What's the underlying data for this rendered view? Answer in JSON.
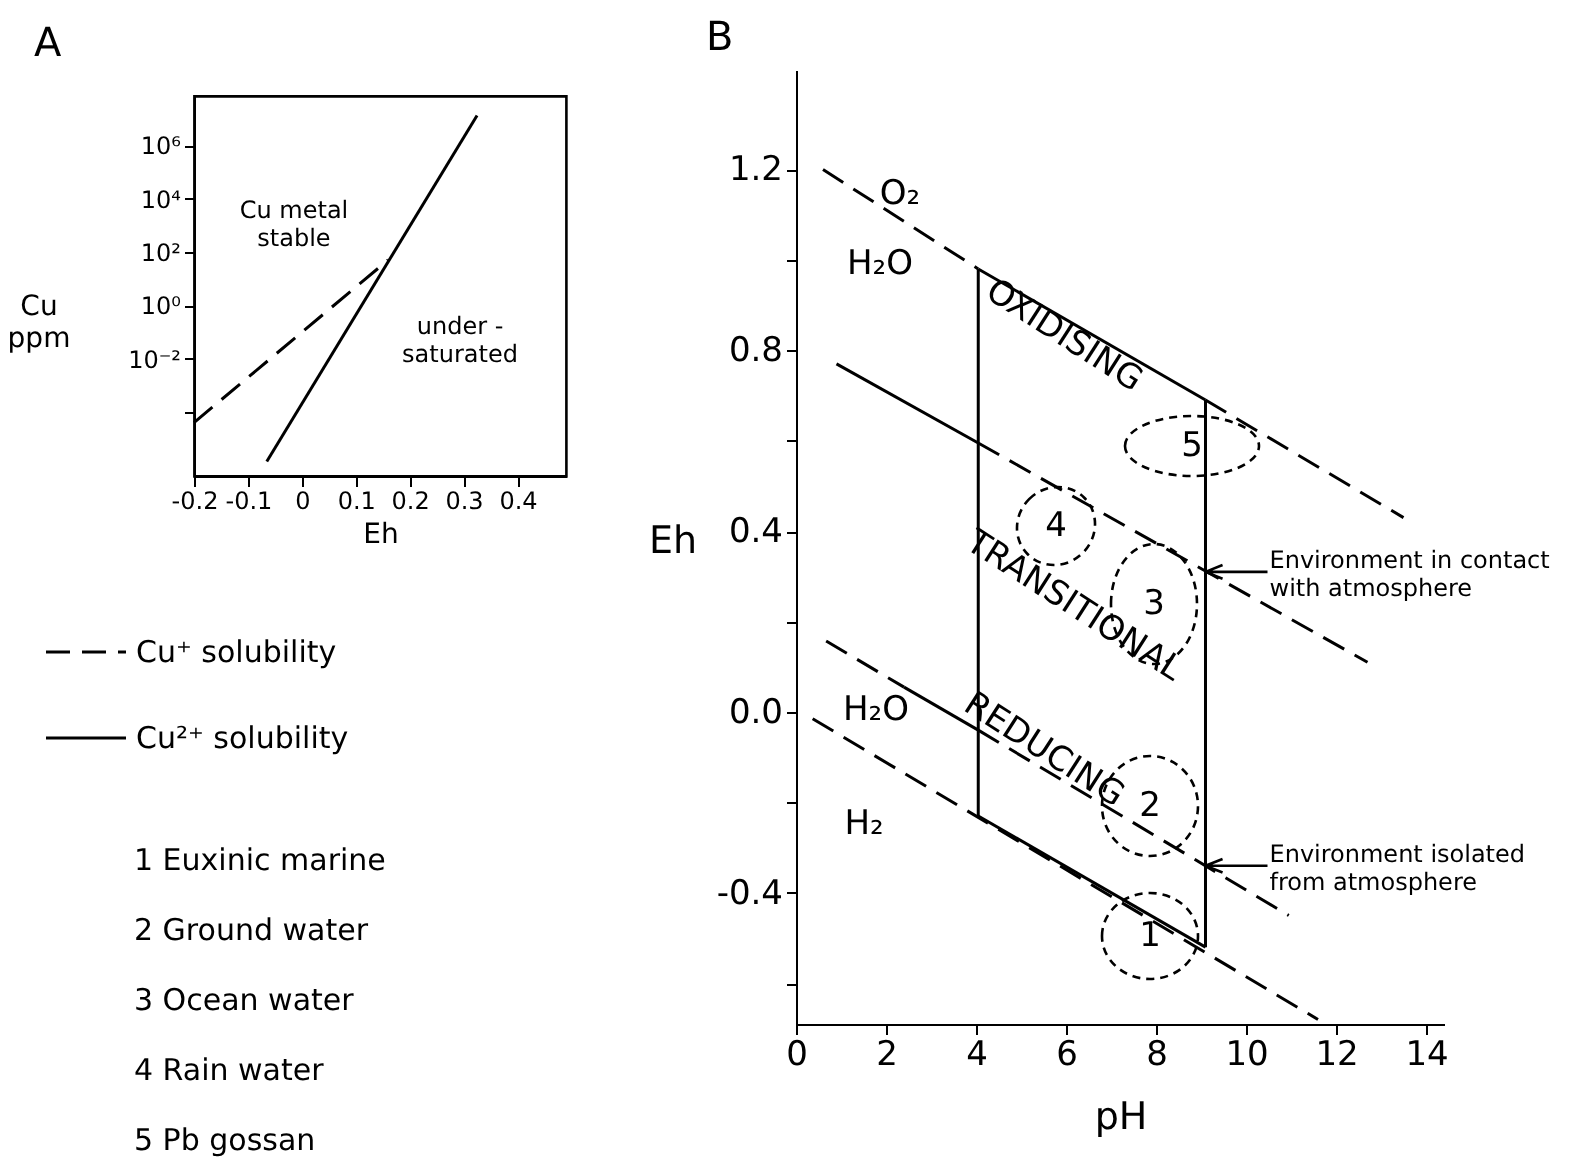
{
  "chart_data": [
    {
      "type": "line",
      "title": "A",
      "xlabel": "Eh",
      "ylabel": "Cu\nppm",
      "log": "y",
      "legend": "bottom left",
      "xlim": [
        -0.2,
        0.49
      ],
      "ylim": [
        4e-07,
        70000000
      ],
      "xticks": [
        -0.2,
        -0.1,
        0,
        0.1,
        0.2,
        0.3,
        0.4
      ],
      "yticks": [
        {
          "value": 0.0001,
          "label": null
        },
        {
          "value": 0.01,
          "label": "10⁻²"
        },
        {
          "value": 1,
          "label": "10⁰"
        },
        {
          "value": 100,
          "label": "10²"
        },
        {
          "value": 10000,
          "label": "10⁴"
        },
        {
          "value": 1000000,
          "label": "10⁶"
        }
      ],
      "series": [
        {
          "name": "Cu⁺ solubility",
          "color": "#000000",
          "line_style": "dashed",
          "x": [
            -0.2,
            0.16
          ],
          "values": [
            4e-05,
            50
          ]
        },
        {
          "name": "Cu²⁺ solubility",
          "color": "#000000",
          "line_style": "solid",
          "x": [
            -0.065,
            0.325
          ],
          "values": [
            1.4e-06,
            13000000
          ]
        }
      ],
      "annotations": [
        "Cu metal\nstable",
        "under -\nsaturated",
        "1 Euxinic marine",
        "2 Ground water",
        "3 Ocean water",
        "4 Rain water",
        "5 Pb gossan"
      ]
    },
    {
      "type": "line",
      "title": "B",
      "xlabel": "pH",
      "ylabel": "Eh",
      "xlim": [
        0,
        14.4
      ],
      "ylim": [
        -0.69,
        1.42
      ],
      "xticks": [
        0,
        2,
        4,
        6,
        8,
        10,
        12,
        14
      ],
      "yticks": [
        {
          "value": -0.6,
          "label": null
        },
        -0.4,
        {
          "value": -0.2,
          "label": null
        },
        {
          "value": 0,
          "label": "0.0"
        },
        {
          "value": 0.2,
          "label": null
        },
        0.4,
        {
          "value": 0.6,
          "label": null
        },
        0.8,
        {
          "value": 1.0,
          "label": null
        },
        1.2
      ],
      "series": [
        {
          "color": "#000000",
          "line_style": "dashed",
          "x": [
            0.6,
            4.05
          ],
          "values": [
            1.2,
            0.98
          ]
        },
        {
          "color": "#000000",
          "line_style": "solid",
          "x": [
            4.05,
            9.1
          ],
          "values": [
            0.98,
            0.69
          ]
        },
        {
          "color": "#000000",
          "line_style": "dashed",
          "x": [
            9.1,
            13.5
          ],
          "values": [
            0.69,
            0.43
          ]
        },
        {
          "color": "#000000",
          "line_style": "solid",
          "x": [
            4.05,
            4.05
          ],
          "values": [
            0.98,
            -0.23
          ]
        },
        {
          "color": "#000000",
          "line_style": "solid",
          "x": [
            4.05,
            9.1
          ],
          "values": [
            -0.23,
            -0.52
          ]
        },
        {
          "color": "#000000",
          "line_style": "solid",
          "x": [
            9.1,
            9.1
          ],
          "values": [
            -0.52,
            0.69
          ]
        },
        {
          "color": "#000000",
          "line_style": "solid",
          "x": [
            0.9,
            4.05
          ],
          "values": [
            0.77,
            0.595
          ]
        },
        {
          "color": "#000000",
          "line_style": "dashed",
          "x": [
            4.05,
            12.7
          ],
          "values": [
            0.595,
            0.11
          ]
        },
        {
          "color": "#000000",
          "line_style": "dashed",
          "x": [
            0.67,
            2.4
          ],
          "values": [
            0.157,
            0.055
          ]
        },
        {
          "color": "#000000",
          "line_style": "solid",
          "x": [
            2.4,
            4.05
          ],
          "values": [
            0.055,
            -0.04
          ]
        },
        {
          "color": "#000000",
          "line_style": "dashed",
          "x": [
            4.05,
            10.95
          ],
          "values": [
            -0.04,
            -0.45
          ]
        },
        {
          "color": "#000000",
          "line_style": "dashed",
          "x": [
            0.37,
            11.6
          ],
          "values": [
            -0.015,
            -0.68
          ]
        }
      ],
      "annotations": [
        "O₂",
        "H₂O",
        "H₂O",
        "H₂",
        "OXIDISING",
        "TRANSITIONAL",
        "REDUCING",
        "1",
        "2",
        "3",
        "4",
        "5",
        {
          "text": "Environment in contact\nwith atmosphere",
          "x": 9.1,
          "y": 0.31
        },
        {
          "text": "Environment isolated\nfrom atmosphere",
          "x": 9.1,
          "y": -0.34
        }
      ]
    }
  ]
}
